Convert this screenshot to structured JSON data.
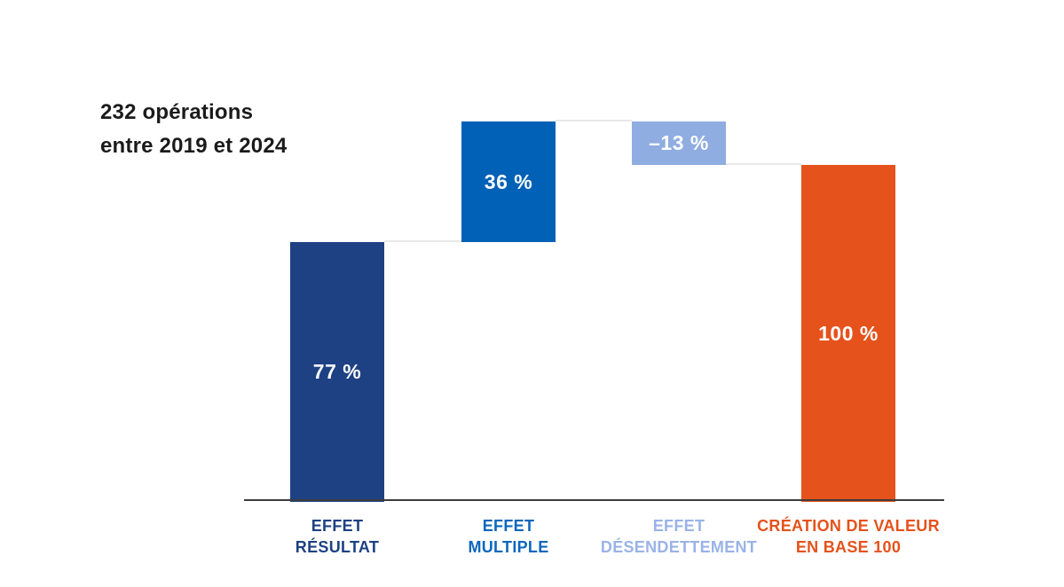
{
  "annotation": {
    "line1": "232 opérations",
    "line2": "entre 2019 et 2024"
  },
  "chart_data": {
    "type": "bar",
    "subtype": "waterfall",
    "title": "232 opérations entre 2019 et 2024",
    "unit": "%",
    "baseline": 0,
    "axis_range": [
      0,
      113
    ],
    "grid": false,
    "legend": "none",
    "categories": [
      "EFFET RÉSULTAT",
      "EFFET MULTIPLE",
      "EFFET DÉSENDETTEMENT",
      "CRÉATION DE VALEUR EN BASE 100"
    ],
    "values": [
      77,
      36,
      -13,
      100
    ],
    "bars": [
      {
        "id": "effet-resultat",
        "label_lines": [
          "EFFET",
          "RÉSULTAT"
        ],
        "value": 77,
        "value_label": "77 %",
        "kind": "increase",
        "color": "#1e4183",
        "label_color": "#1e4183"
      },
      {
        "id": "effet-multiple",
        "label_lines": [
          "EFFET",
          "MULTIPLE"
        ],
        "value": 36,
        "value_label": "36 %",
        "kind": "increase",
        "color": "#0061b6",
        "label_color": "#0c67bc"
      },
      {
        "id": "effet-desendettement",
        "label_lines": [
          "EFFET",
          "DÉSENDETTEMENT"
        ],
        "value": -13,
        "value_label": "–13 %",
        "kind": "decrease",
        "color": "#8fade0",
        "label_color": "#9ab3e6"
      },
      {
        "id": "creation-de-valeur-en-base-100",
        "label_lines": [
          "CRÉATION DE VALEUR",
          "EN BASE 100"
        ],
        "value": 100,
        "value_label": "100 %",
        "kind": "total",
        "color": "#e5521b",
        "label_color": "#e5521b"
      }
    ],
    "colors": {
      "axis": "#3d3d3d",
      "connector": "#e8e8e8",
      "value_text": "#ffffff",
      "annotation_text": "#1b1b1b"
    }
  }
}
